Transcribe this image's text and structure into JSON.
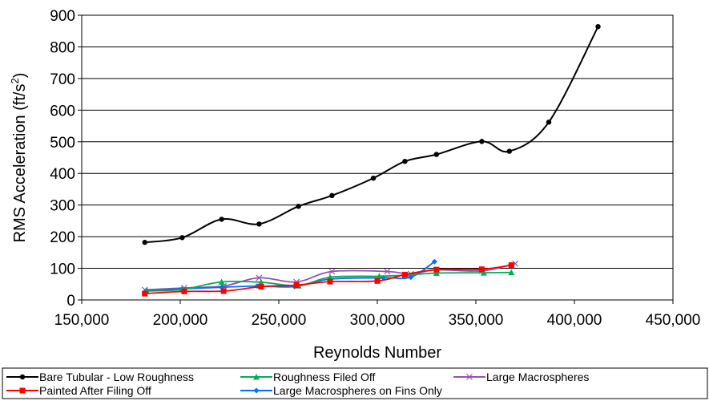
{
  "chart_data": {
    "type": "line",
    "title": "",
    "xlabel": "Reynolds Number",
    "ylabel_main": "RMS Acceleration (ft/s",
    "ylabel_sup": "2",
    "ylabel_end": ")",
    "xlim": [
      150000,
      450000
    ],
    "ylim": [
      0,
      900
    ],
    "xticks": [
      150000,
      200000,
      250000,
      300000,
      350000,
      400000,
      450000
    ],
    "xtick_labels": [
      "150,000",
      "200,000",
      "250,000",
      "300,000",
      "350,000",
      "400,000",
      "450,000"
    ],
    "yticks": [
      0,
      100,
      200,
      300,
      400,
      500,
      600,
      700,
      800,
      900
    ],
    "ytick_labels": [
      "0",
      "100",
      "200",
      "300",
      "400",
      "500",
      "600",
      "700",
      "800",
      "900"
    ],
    "grid": "horizontal",
    "legend_position": "bottom",
    "series": [
      {
        "name": "Bare Tubular - Low Roughness",
        "color": "#000000",
        "marker": "circle",
        "x": [
          182000,
          201000,
          221000,
          240000,
          260000,
          277000,
          298000,
          314000,
          330000,
          353000,
          367000,
          387000,
          412000
        ],
        "y": [
          182,
          197,
          255,
          240,
          296,
          330,
          385,
          438,
          460,
          501,
          470,
          562,
          864
        ]
      },
      {
        "name": "Painted After Filing Off",
        "color": "#ff0000",
        "marker": "square",
        "x": [
          182000,
          202000,
          222000,
          241000,
          259000,
          276000,
          300000,
          314000,
          330000,
          353000,
          368000
        ],
        "y": [
          20,
          27,
          28,
          42,
          47,
          58,
          60,
          80,
          96,
          97,
          110
        ]
      },
      {
        "name": "Roughness Filed Off",
        "color": "#00b050",
        "marker": "triangle",
        "x": [
          183000,
          201000,
          221000,
          241000,
          260000,
          276000,
          301000,
          314000,
          330000,
          354000,
          368000
        ],
        "y": [
          28,
          33,
          57,
          56,
          45,
          72,
          75,
          78,
          85,
          86,
          87
        ]
      },
      {
        "name": "Large Macrospheres on Fins Only",
        "color": "#0070ff",
        "marker": "diamond",
        "x": [
          183000,
          201000,
          221000,
          239000,
          258000,
          276000,
          303000,
          317000,
          329000
        ],
        "y": [
          30,
          35,
          40,
          44,
          42,
          66,
          70,
          72,
          121
        ]
      },
      {
        "name": "Large Macrospheres",
        "color": "#9a4fb0",
        "marker": "x",
        "x": [
          182000,
          202000,
          222000,
          240000,
          259000,
          277000,
          305000,
          317000,
          330000,
          353000,
          370000
        ],
        "y": [
          32,
          38,
          44,
          70,
          57,
          90,
          90,
          82,
          95,
          92,
          115
        ]
      }
    ],
    "legend_order": [
      0,
      2,
      4,
      1,
      3
    ]
  }
}
